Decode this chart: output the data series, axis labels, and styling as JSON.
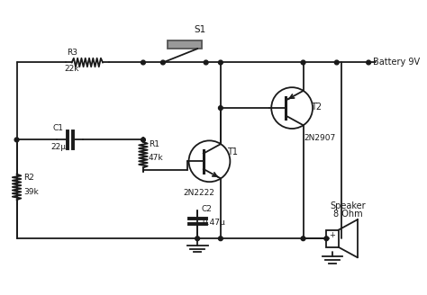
{
  "background": "#ffffff",
  "line_color": "#1a1a1a",
  "line_width": 1.3,
  "labels": {
    "R3": "R3",
    "22k": "22k",
    "C1": "C1",
    "22u": "22μ",
    "R2": "R2",
    "39k": "39k",
    "R1": "R1",
    "47k": "47k",
    "T1": "T1",
    "2N2222": "2N2222",
    "T2": "T2",
    "2N2907": "2N2907",
    "C2": "C2",
    "047u": "0.47μ",
    "S1": "S1",
    "battery": "Battery 9V",
    "speaker": "Speaker",
    "ohm": "8 Ohm"
  }
}
